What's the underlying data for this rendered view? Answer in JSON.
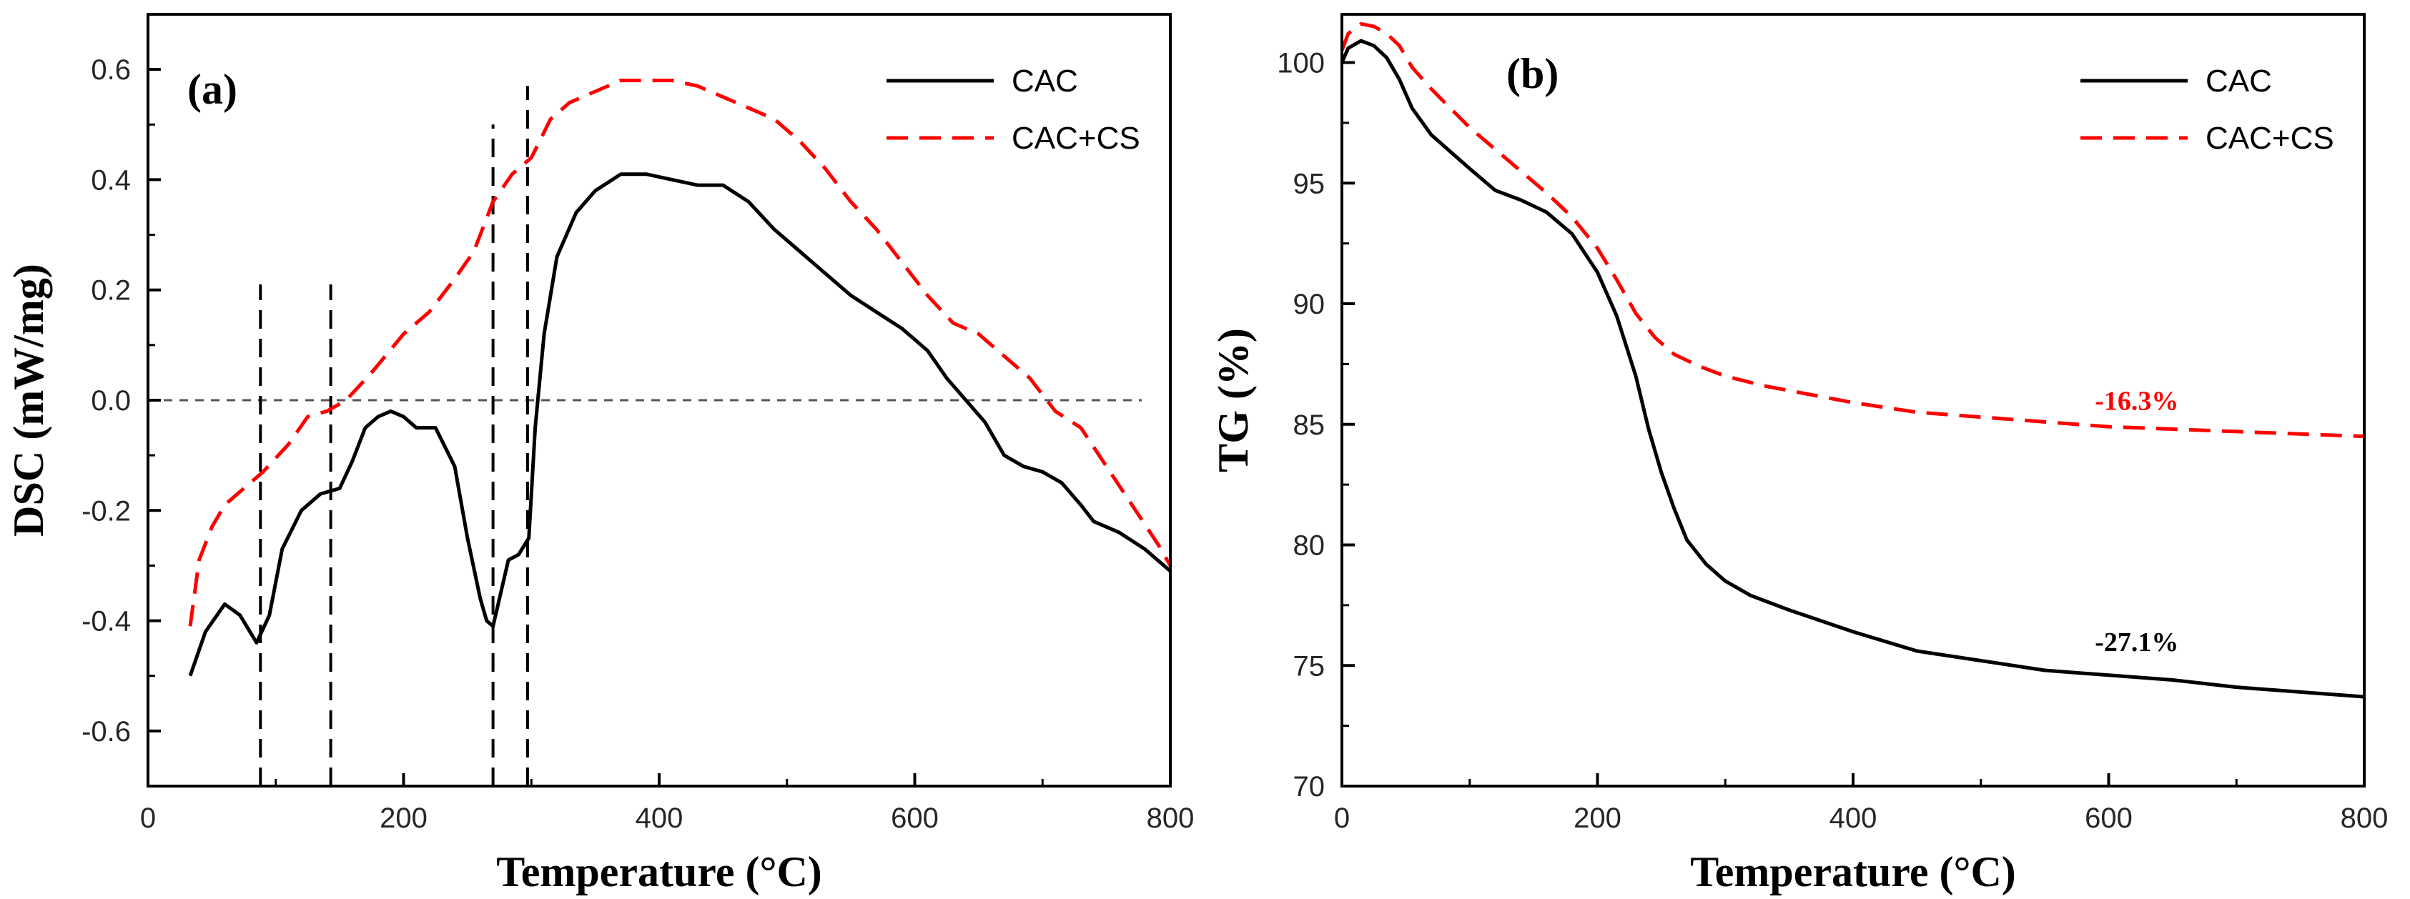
{
  "chart_data": [
    {
      "type": "line",
      "panel_label": "(a)",
      "title": "",
      "xlabel": "Temperature (°C)",
      "ylabel": "DSC (mW/mg)",
      "xlim": [
        0,
        800
      ],
      "ylim": [
        -0.7,
        0.7
      ],
      "xticks": [
        0,
        200,
        400,
        600,
        800
      ],
      "xtick_labels": [
        "0",
        "200",
        "400",
        "600",
        "800"
      ],
      "yticks": [
        -0.6,
        -0.4,
        -0.2,
        0.0,
        0.2,
        0.4,
        0.6
      ],
      "ytick_labels": [
        "-0.6",
        "-0.4",
        "-0.2",
        "0.0",
        "0.2",
        "0.4",
        "0.6"
      ],
      "legend_position": "top-right",
      "baseline_y": 0.0,
      "vlines": [
        {
          "x": 88,
          "y_range": [
            -0.7,
            0.21
          ]
        },
        {
          "x": 143,
          "y_range": [
            -0.7,
            0.21
          ]
        },
        {
          "x": 270,
          "y_range": [
            -0.7,
            0.5
          ]
        },
        {
          "x": 297,
          "y_range": [
            -0.7,
            0.57
          ]
        }
      ],
      "series": [
        {
          "name": "CAC",
          "color": "#000000",
          "style": "solid",
          "x": [
            33,
            45,
            60,
            72,
            85,
            95,
            105,
            120,
            135,
            150,
            160,
            170,
            180,
            190,
            200,
            210,
            225,
            240,
            250,
            260,
            265,
            270,
            275,
            282,
            290,
            298,
            303,
            310,
            320,
            335,
            350,
            370,
            390,
            410,
            430,
            450,
            470,
            490,
            510,
            530,
            550,
            570,
            590,
            610,
            625,
            640,
            655,
            670,
            685,
            700,
            715,
            730,
            740,
            760,
            780,
            800
          ],
          "y": [
            -0.5,
            -0.42,
            -0.37,
            -0.39,
            -0.44,
            -0.39,
            -0.27,
            -0.2,
            -0.17,
            -0.16,
            -0.11,
            -0.05,
            -0.03,
            -0.02,
            -0.03,
            -0.05,
            -0.05,
            -0.12,
            -0.25,
            -0.36,
            -0.4,
            -0.41,
            -0.36,
            -0.29,
            -0.28,
            -0.25,
            -0.05,
            0.12,
            0.26,
            0.34,
            0.38,
            0.41,
            0.41,
            0.4,
            0.39,
            0.39,
            0.36,
            0.31,
            0.27,
            0.23,
            0.19,
            0.16,
            0.13,
            0.09,
            0.04,
            0.0,
            -0.04,
            -0.1,
            -0.12,
            -0.13,
            -0.15,
            -0.19,
            -0.22,
            -0.24,
            -0.27,
            -0.31
          ]
        },
        {
          "name": "CAC+CS",
          "color": "#ff0000",
          "style": "dashed",
          "x": [
            33,
            40,
            50,
            60,
            75,
            90,
            110,
            125,
            140,
            155,
            175,
            200,
            220,
            240,
            255,
            270,
            285,
            300,
            315,
            330,
            350,
            370,
            390,
            410,
            430,
            450,
            470,
            490,
            510,
            530,
            550,
            570,
            590,
            610,
            630,
            650,
            670,
            690,
            710,
            730,
            750,
            770,
            790,
            800
          ],
          "y": [
            -0.41,
            -0.29,
            -0.23,
            -0.19,
            -0.16,
            -0.13,
            -0.08,
            -0.03,
            -0.02,
            0.0,
            0.05,
            0.12,
            0.16,
            0.22,
            0.27,
            0.36,
            0.41,
            0.44,
            0.51,
            0.54,
            0.56,
            0.58,
            0.58,
            0.58,
            0.57,
            0.55,
            0.53,
            0.51,
            0.47,
            0.42,
            0.36,
            0.31,
            0.25,
            0.19,
            0.14,
            0.12,
            0.08,
            0.04,
            -0.02,
            -0.05,
            -0.12,
            -0.19,
            -0.26,
            -0.3
          ]
        }
      ]
    },
    {
      "type": "line",
      "panel_label": "(b)",
      "title": "",
      "xlabel": "Temperature (°C)",
      "ylabel": "TG (%)",
      "xlim": [
        0,
        800
      ],
      "ylim": [
        70,
        102
      ],
      "xticks": [
        0,
        200,
        400,
        600,
        800
      ],
      "xtick_labels": [
        "0",
        "200",
        "400",
        "600",
        "800"
      ],
      "yticks": [
        70,
        75,
        80,
        85,
        90,
        95,
        100
      ],
      "ytick_labels": [
        "70",
        "75",
        "80",
        "85",
        "90",
        "95",
        "100"
      ],
      "legend_position": "top-right",
      "annotations": [
        {
          "text": "-16.3%",
          "x": 622,
          "y": 85.6,
          "color": "#ff0000"
        },
        {
          "text": "-27.1%",
          "x": 622,
          "y": 75.6,
          "color": "#000000"
        }
      ],
      "series": [
        {
          "name": "CAC",
          "color": "#000000",
          "style": "solid",
          "x": [
            0,
            5,
            15,
            25,
            35,
            45,
            55,
            70,
            85,
            100,
            120,
            140,
            160,
            180,
            200,
            215,
            230,
            240,
            250,
            260,
            270,
            285,
            300,
            320,
            350,
            400,
            450,
            500,
            550,
            600,
            650,
            700,
            750,
            800
          ],
          "y": [
            100.0,
            100.6,
            100.9,
            100.7,
            100.2,
            99.3,
            98.1,
            97.0,
            96.3,
            95.6,
            94.7,
            94.3,
            93.8,
            92.9,
            91.3,
            89.5,
            87.0,
            84.8,
            83.0,
            81.5,
            80.2,
            79.2,
            78.5,
            77.9,
            77.3,
            76.4,
            75.6,
            75.2,
            74.8,
            74.6,
            74.4,
            74.1,
            73.9,
            73.7
          ]
        },
        {
          "name": "CAC+CS",
          "color": "#ff0000",
          "style": "dashed",
          "x": [
            0,
            5,
            15,
            25,
            35,
            45,
            55,
            70,
            85,
            100,
            120,
            140,
            160,
            180,
            200,
            215,
            230,
            245,
            260,
            280,
            300,
            330,
            360,
            400,
            450,
            500,
            550,
            600,
            650,
            700,
            750,
            800
          ],
          "y": [
            100.5,
            101.2,
            101.6,
            101.5,
            101.2,
            100.7,
            99.8,
            98.9,
            98.1,
            97.3,
            96.4,
            95.5,
            94.6,
            93.6,
            92.3,
            91.0,
            89.6,
            88.6,
            87.9,
            87.4,
            87.0,
            86.6,
            86.3,
            85.9,
            85.5,
            85.3,
            85.1,
            84.9,
            84.8,
            84.7,
            84.6,
            84.5
          ]
        }
      ]
    }
  ]
}
